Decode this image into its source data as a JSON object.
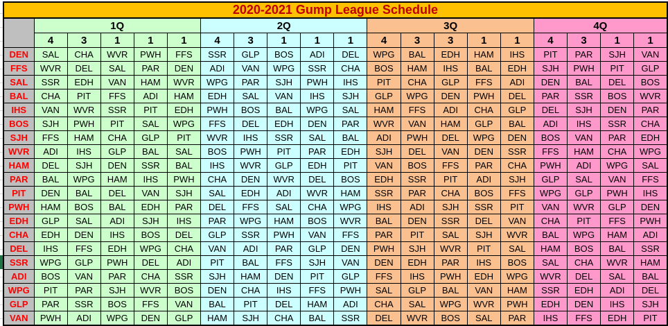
{
  "title": "2020-2021 Gump League Schedule",
  "quarters": [
    {
      "label": "1Q",
      "weeks": [
        "4",
        "3",
        "1",
        "1",
        "1"
      ],
      "color": "#CCFFCC"
    },
    {
      "label": "2Q",
      "weeks": [
        "4",
        "3",
        "1",
        "1",
        "1"
      ],
      "color": "#CCFFFF"
    },
    {
      "label": "3Q",
      "weeks": [
        "4",
        "3",
        "3",
        "1",
        "1"
      ],
      "color": "#FAC090"
    },
    {
      "label": "4Q",
      "weeks": [
        "4",
        "3",
        "1",
        "1"
      ],
      "color": "#FF99CC"
    }
  ],
  "rows": [
    {
      "team": "DEN",
      "games": [
        "SAL",
        "CHA",
        "WVR",
        "PWH",
        "FFS",
        "SSR",
        "GLP",
        "BOS",
        "ADI",
        "DEL",
        "WPG",
        "BAL",
        "EDH",
        "HAM",
        "IHS",
        "PIT",
        "PAR",
        "SJH",
        "VAN"
      ]
    },
    {
      "team": "FFS",
      "games": [
        "WVR",
        "DEL",
        "SAL",
        "PAR",
        "DEN",
        "ADI",
        "VAN",
        "WPG",
        "SSR",
        "CHA",
        "BOS",
        "HAM",
        "IHS",
        "BAL",
        "EDH",
        "SJH",
        "PWH",
        "PIT",
        "GLP"
      ]
    },
    {
      "team": "SAL",
      "games": [
        "SSR",
        "EDH",
        "VAN",
        "HAM",
        "WVR",
        "WPG",
        "PAR",
        "SJH",
        "PWH",
        "IHS",
        "PIT",
        "CHA",
        "GLP",
        "FFS",
        "ADI",
        "DEN",
        "BAL",
        "DEL",
        "BOS"
      ]
    },
    {
      "team": "BAL",
      "games": [
        "CHA",
        "PIT",
        "FFS",
        "ADI",
        "HAM",
        "EDH",
        "SAL",
        "VAN",
        "IHS",
        "SJH",
        "GLP",
        "WPG",
        "DEN",
        "PWH",
        "DEL",
        "PAR",
        "SSR",
        "BOS",
        "WVR"
      ]
    },
    {
      "team": "IHS",
      "games": [
        "VAN",
        "WVR",
        "SSR",
        "PIT",
        "EDH",
        "PWH",
        "BOS",
        "BAL",
        "WPG",
        "SAL",
        "HAM",
        "FFS",
        "ADI",
        "CHA",
        "GLP",
        "DEL",
        "SJH",
        "DEN",
        "PAR"
      ]
    },
    {
      "team": "BOS",
      "games": [
        "SJH",
        "PWH",
        "PIT",
        "SAL",
        "WPG",
        "FFS",
        "DEL",
        "EDH",
        "DEN",
        "PAR",
        "WVR",
        "VAN",
        "HAM",
        "GLP",
        "BAL",
        "ADI",
        "IHS",
        "SSR",
        "CHA"
      ]
    },
    {
      "team": "SJH",
      "games": [
        "FFS",
        "HAM",
        "CHA",
        "GLP",
        "PIT",
        "WVR",
        "IHS",
        "SSR",
        "SAL",
        "BAL",
        "ADI",
        "PWH",
        "DEL",
        "WPG",
        "DEN",
        "BOS",
        "VAN",
        "PAR",
        "EDH"
      ]
    },
    {
      "team": "WVR",
      "games": [
        "ADI",
        "IHS",
        "GLP",
        "BAL",
        "SAL",
        "BOS",
        "PWH",
        "PIT",
        "PAR",
        "EDH",
        "SJH",
        "DEL",
        "VAN",
        "DEN",
        "SSR",
        "FFS",
        "HAM",
        "CHA",
        "WPG"
      ]
    },
    {
      "team": "HAM",
      "games": [
        "DEL",
        "SJH",
        "DEN",
        "SSR",
        "BAL",
        "IHS",
        "WVR",
        "GLP",
        "EDH",
        "PIT",
        "VAN",
        "BOS",
        "FFS",
        "PAR",
        "CHA",
        "PWH",
        "ADI",
        "WPG",
        "SAL"
      ]
    },
    {
      "team": "PAR",
      "games": [
        "BAL",
        "WPG",
        "HAM",
        "IHS",
        "PWH",
        "CHA",
        "DEN",
        "WVR",
        "DEL",
        "BOS",
        "EDH",
        "SSR",
        "PIT",
        "ADI",
        "SJH",
        "GLP",
        "SAL",
        "VAN",
        "FFS"
      ]
    },
    {
      "team": "PIT",
      "games": [
        "DEN",
        "BAL",
        "DEL",
        "VAN",
        "SJH",
        "SAL",
        "EDH",
        "ADI",
        "WVR",
        "HAM",
        "SSR",
        "PAR",
        "CHA",
        "BOS",
        "FFS",
        "WPG",
        "GLP",
        "PWH",
        "IHS"
      ]
    },
    {
      "team": "PWH",
      "games": [
        "HAM",
        "BOS",
        "BAL",
        "EDH",
        "PAR",
        "DEL",
        "FFS",
        "SAL",
        "CHA",
        "WPG",
        "IHS",
        "ADI",
        "SJH",
        "SSR",
        "PIT",
        "VAN",
        "WVR",
        "GLP",
        "DEN"
      ]
    },
    {
      "team": "EDH",
      "games": [
        "GLP",
        "SAL",
        "ADI",
        "SJH",
        "IHS",
        "PAR",
        "WPG",
        "HAM",
        "BOS",
        "WVR",
        "BAL",
        "DEN",
        "SSR",
        "DEL",
        "VAN",
        "CHA",
        "PIT",
        "FFS",
        "PWH"
      ]
    },
    {
      "team": "CHA",
      "games": [
        "EDH",
        "DEN",
        "IHS",
        "BOS",
        "DEL",
        "GLP",
        "SSR",
        "PWH",
        "VAN",
        "FFS",
        "PAR",
        "PIT",
        "SAL",
        "SJH",
        "WVR",
        "BAL",
        "WPG",
        "HAM",
        "ADI"
      ]
    },
    {
      "team": "DEL",
      "games": [
        "IHS",
        "FFS",
        "EDH",
        "WPG",
        "CHA",
        "VAN",
        "ADI",
        "PAR",
        "GLP",
        "DEN",
        "PWH",
        "SJH",
        "WVR",
        "PIT",
        "SAL",
        "HAM",
        "BOS",
        "BAL",
        "SSR"
      ]
    },
    {
      "team": "SSR",
      "games": [
        "WPG",
        "GLP",
        "PWH",
        "DEL",
        "ADI",
        "PIT",
        "BAL",
        "FFS",
        "SJH",
        "VAN",
        "DEN",
        "EDH",
        "PAR",
        "IHS",
        "BOS",
        "SAL",
        "CHA",
        "WVR",
        "HAM"
      ]
    },
    {
      "team": "ADI",
      "games": [
        "BOS",
        "VAN",
        "PAR",
        "CHA",
        "SSR",
        "SJH",
        "HAM",
        "DEN",
        "PIT",
        "GLP",
        "FFS",
        "IHS",
        "PWH",
        "EDH",
        "WPG",
        "WVR",
        "DEL",
        "SAL",
        "BAL"
      ]
    },
    {
      "team": "WPG",
      "games": [
        "PIT",
        "PAR",
        "SJH",
        "WVR",
        "BOS",
        "DEN",
        "CHA",
        "IHS",
        "FFS",
        "PWH",
        "SAL",
        "GLP",
        "BAL",
        "VAN",
        "HAM",
        "SSR",
        "EDH",
        "ADI",
        "DEL"
      ]
    },
    {
      "team": "GLP",
      "games": [
        "PAR",
        "SSR",
        "BOS",
        "FFS",
        "VAN",
        "BAL",
        "PIT",
        "DEL",
        "HAM",
        "ADI",
        "CHA",
        "SAL",
        "WPG",
        "WVR",
        "PWH",
        "EDH",
        "DEN",
        "IHS",
        "SJH"
      ]
    },
    {
      "team": "VAN",
      "games": [
        "PWH",
        "ADI",
        "WPG",
        "DEN",
        "GLP",
        "HAM",
        "SJH",
        "CHA",
        "BAL",
        "SSR",
        "DEL",
        "WVR",
        "BOS",
        "SAL",
        "PAR",
        "IHS",
        "FFS",
        "EDH",
        "PIT"
      ]
    }
  ],
  "colors": {
    "gold": "#FFC000",
    "titleRed": "#C00000",
    "gray": "#BFBFBF",
    "teamRed": "#FF0000",
    "green": "#CCFFCC",
    "cyan": "#CCFFFF",
    "orange": "#FAC090",
    "pink": "#FF99CC",
    "markerGreen": "#217346",
    "border": "#000000"
  }
}
